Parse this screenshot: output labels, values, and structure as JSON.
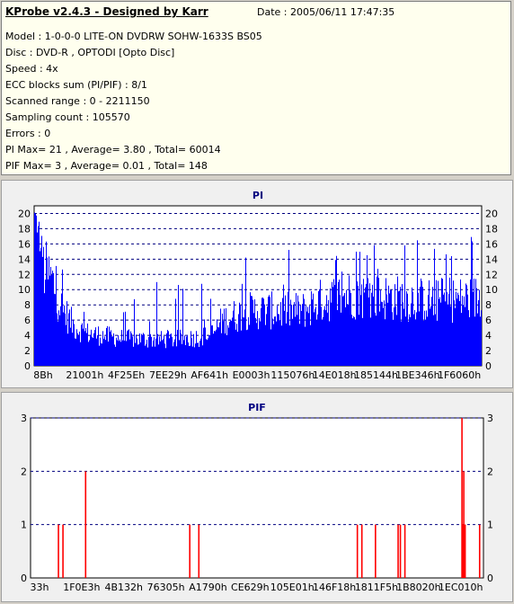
{
  "app_title": "KProbe v2.4.3 - Designed by Karr",
  "date_line": "Date : 2005/06/11 17:47:35",
  "info": [
    "Model : 1-0-0-0 LITE-ON DVDRW SOHW-1633S BS05",
    "Disc : DVD-R , OPTODI [Opto Disc]",
    "Speed : 4x",
    "ECC blocks sum (PI/PIF) : 8/1",
    "Scanned range : 0 - 2211150",
    "Sampling count : 105570",
    "Errors : 0",
    "PI Max= 21 , Average= 3.80 , Total= 60014",
    "PIF Max= 3 , Average= 0.01 , Total= 148"
  ],
  "colors": {
    "pi_bar": "#0000ff",
    "pif_bar": "#ff0000",
    "title_text": "#000080",
    "grid": "#000080",
    "info_bg": "#ffffee"
  },
  "chart_data": [
    {
      "type": "bar",
      "title": "PI",
      "ylim": [
        0,
        21
      ],
      "yticks": [
        0,
        2,
        4,
        6,
        8,
        10,
        12,
        14,
        16,
        18,
        20
      ],
      "xticks": [
        "8Bh",
        "21001h",
        "4F25Eh",
        "7EE29h",
        "AF641h",
        "E0003h",
        "115076h",
        "14E018h",
        "185144h",
        "1BE346h",
        "1F6060h"
      ],
      "grid": true,
      "profile": [
        [
          0,
          21
        ],
        [
          0.01,
          19
        ],
        [
          0.02,
          15
        ],
        [
          0.04,
          13
        ],
        [
          0.06,
          9
        ],
        [
          0.09,
          6
        ],
        [
          0.12,
          5
        ],
        [
          0.2,
          4.2
        ],
        [
          0.3,
          4
        ],
        [
          0.38,
          4.5
        ],
        [
          0.4,
          5
        ],
        [
          0.42,
          7
        ],
        [
          0.48,
          8.5
        ],
        [
          0.6,
          8.5
        ],
        [
          0.64,
          10
        ],
        [
          0.7,
          11
        ],
        [
          0.8,
          10.5
        ],
        [
          0.9,
          10
        ],
        [
          1,
          10.5
        ]
      ]
    },
    {
      "type": "bar",
      "title": "PIF",
      "ylim": [
        0,
        3
      ],
      "yticks": [
        0,
        1,
        2,
        3
      ],
      "xticks": [
        "33h",
        "1F0E3h",
        "4B132h",
        "76305h",
        "A1790h",
        "CE629h",
        "105E01h",
        "146F18h",
        "1811F5h",
        "1B8020h",
        "1EC010h"
      ],
      "grid": true,
      "events": [
        [
          0.06,
          1
        ],
        [
          0.07,
          1
        ],
        [
          0.12,
          2
        ],
        [
          0.35,
          1
        ],
        [
          0.37,
          1
        ],
        [
          0.72,
          1
        ],
        [
          0.73,
          1
        ],
        [
          0.76,
          1
        ],
        [
          0.81,
          1
        ],
        [
          0.815,
          1
        ],
        [
          0.825,
          1
        ],
        [
          0.951,
          3
        ],
        [
          0.952,
          1
        ],
        [
          0.953,
          1
        ],
        [
          0.954,
          1
        ],
        [
          0.955,
          2
        ],
        [
          0.956,
          1
        ],
        [
          0.957,
          1
        ],
        [
          0.958,
          1
        ],
        [
          0.99,
          1
        ]
      ]
    }
  ]
}
